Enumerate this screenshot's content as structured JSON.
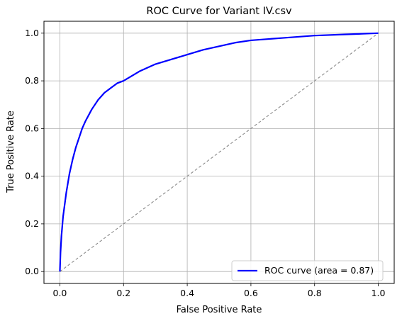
{
  "chart_data": {
    "type": "line",
    "title": "ROC Curve for Variant IV.csv",
    "xlabel": "False Positive Rate",
    "ylabel": "True Positive Rate",
    "xlim": [
      -0.05,
      1.05
    ],
    "ylim": [
      -0.05,
      1.05
    ],
    "xticks": [
      "0.0",
      "0.2",
      "0.4",
      "0.6",
      "0.8",
      "1.0"
    ],
    "yticks": [
      "0.0",
      "0.2",
      "0.4",
      "0.6",
      "0.8",
      "1.0"
    ],
    "grid": true,
    "legend_position": "lower-right",
    "series": [
      {
        "name": "ROC curve (area = 0.87)",
        "color": "#0000ff",
        "style": "solid",
        "x": [
          0.0,
          0.002,
          0.005,
          0.01,
          0.015,
          0.02,
          0.03,
          0.04,
          0.05,
          0.06,
          0.07,
          0.08,
          0.1,
          0.12,
          0.14,
          0.16,
          0.18,
          0.2,
          0.25,
          0.3,
          0.35,
          0.4,
          0.45,
          0.5,
          0.55,
          0.6,
          0.7,
          0.8,
          0.9,
          1.0
        ],
        "y": [
          0.0,
          0.08,
          0.15,
          0.23,
          0.28,
          0.33,
          0.41,
          0.47,
          0.52,
          0.56,
          0.6,
          0.63,
          0.68,
          0.72,
          0.75,
          0.77,
          0.79,
          0.8,
          0.84,
          0.87,
          0.89,
          0.91,
          0.93,
          0.945,
          0.96,
          0.97,
          0.98,
          0.99,
          0.995,
          1.0
        ]
      },
      {
        "name": "",
        "color": "#808080",
        "style": "dashed",
        "x": [
          0.0,
          1.0
        ],
        "y": [
          0.0,
          1.0
        ]
      }
    ]
  }
}
